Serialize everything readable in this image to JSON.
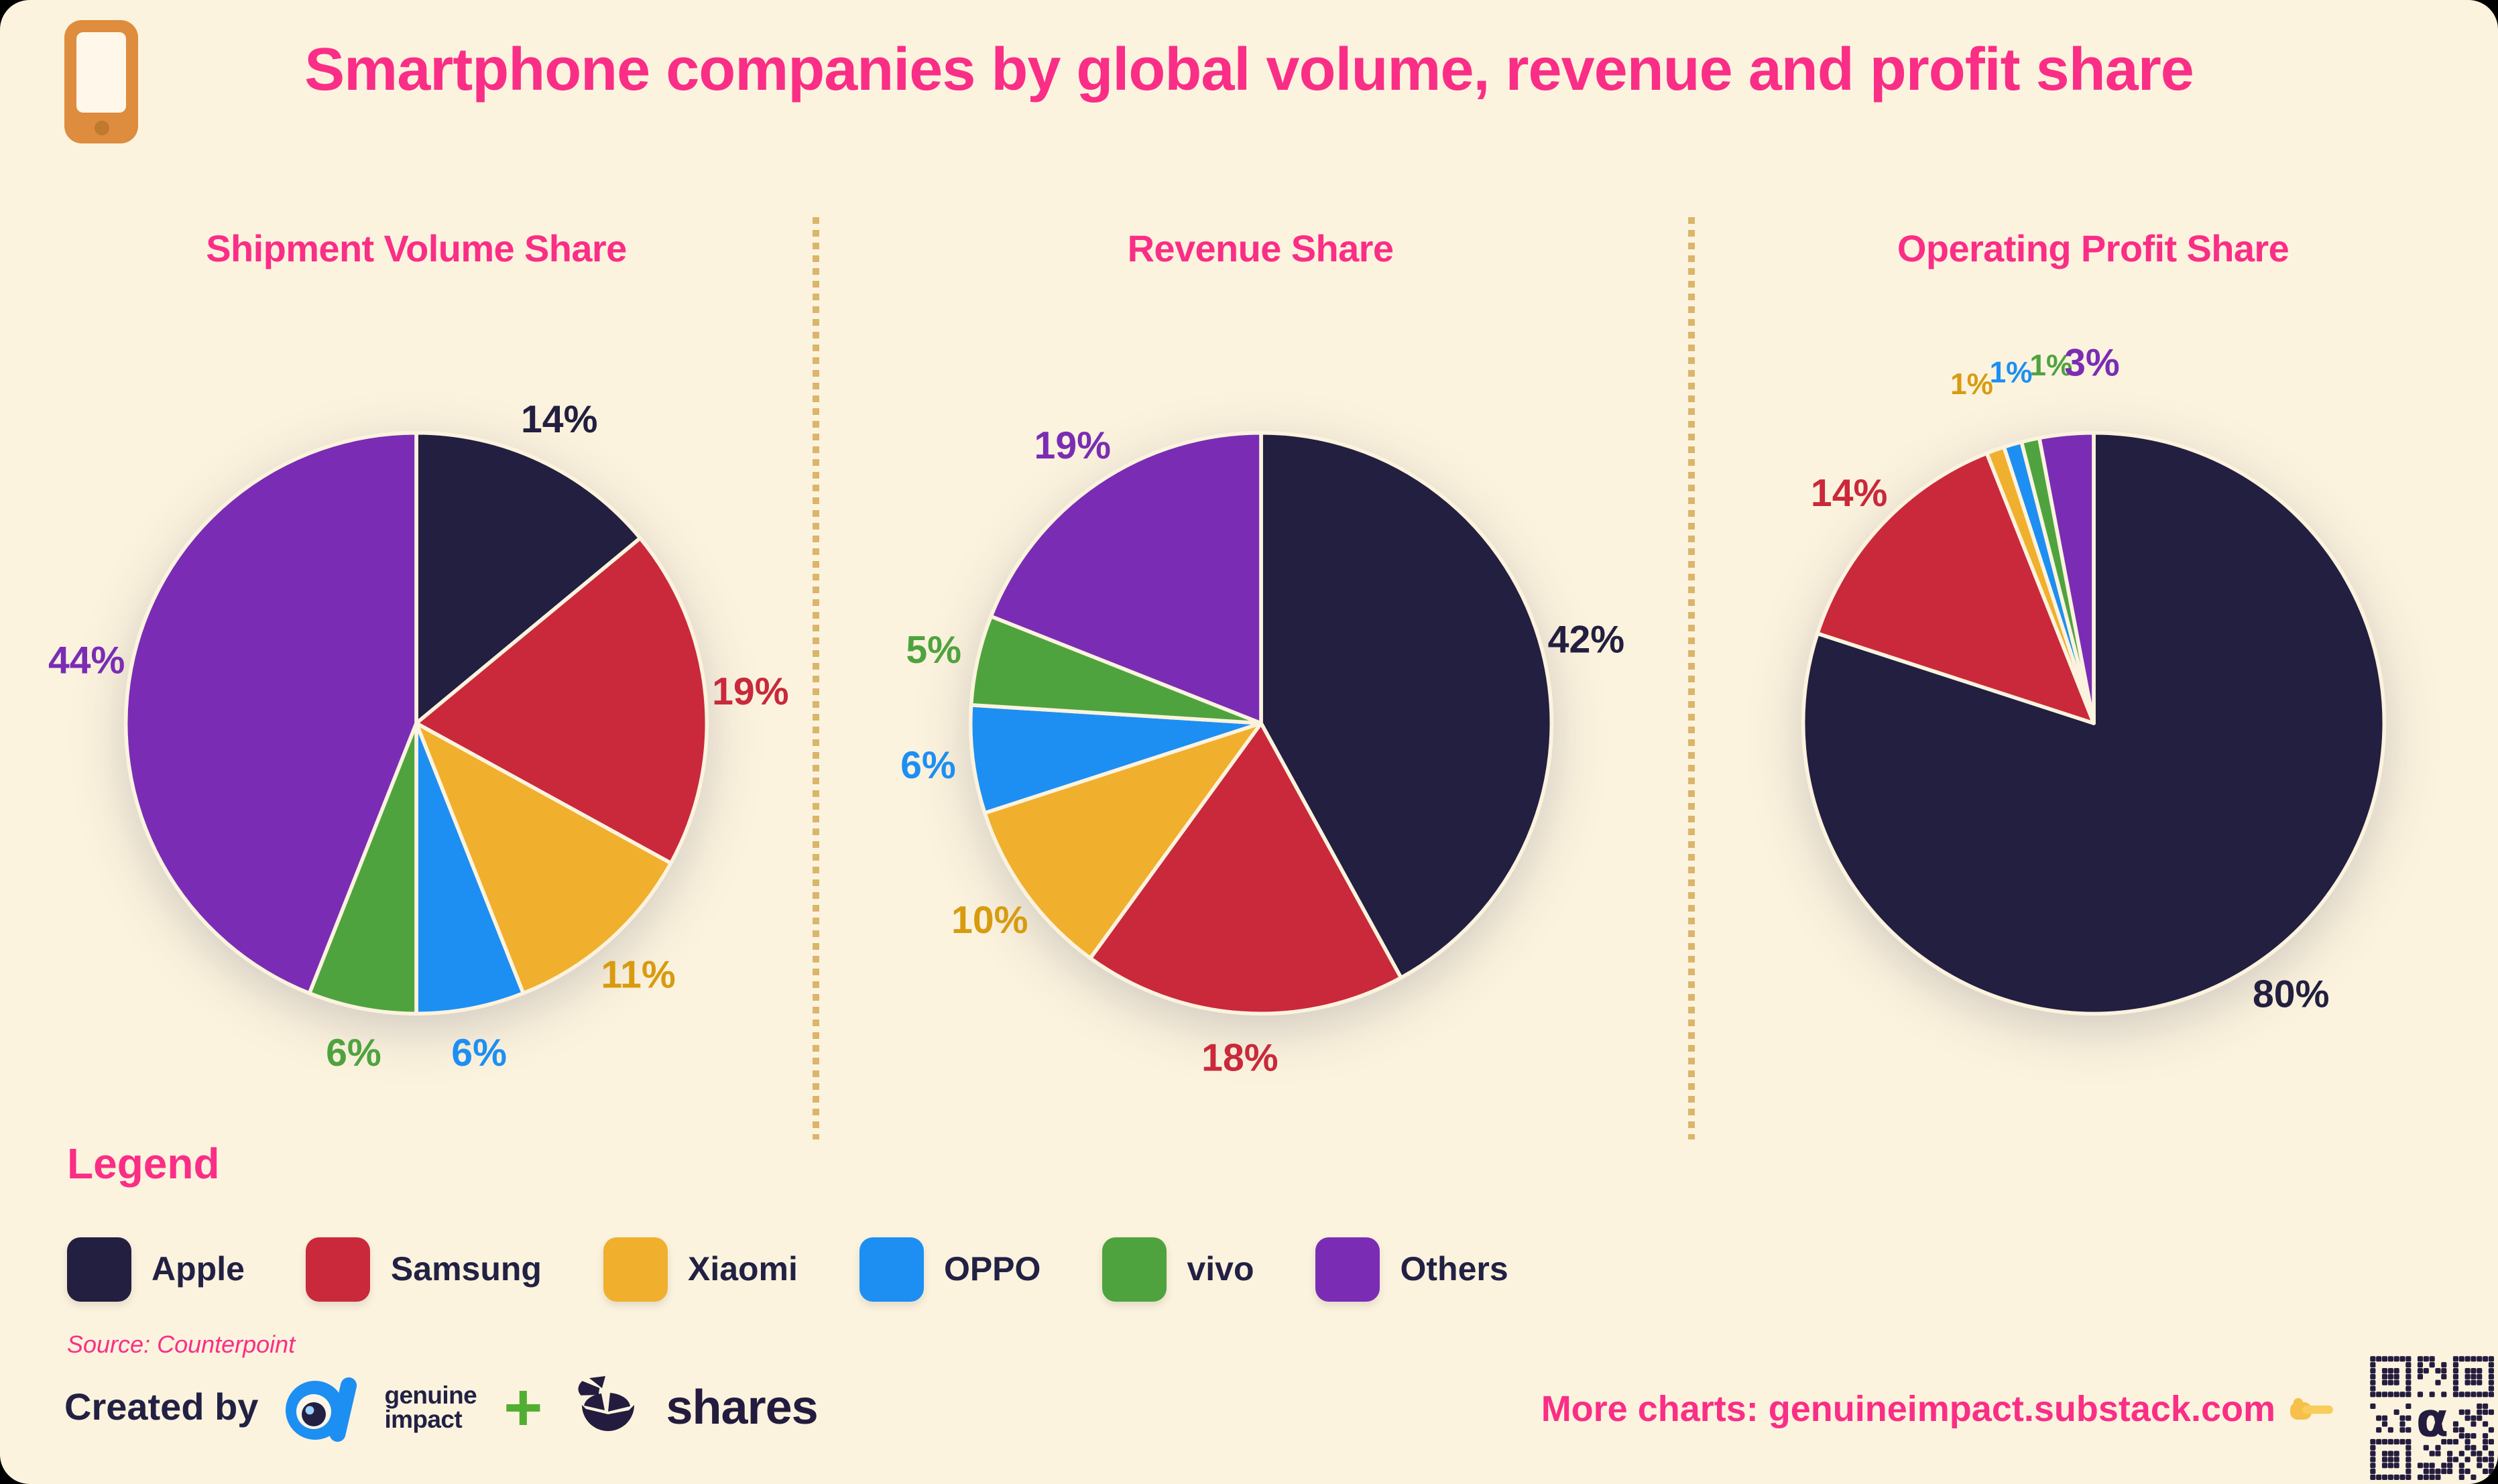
{
  "header": {
    "title": "Smartphone companies by global volume, revenue and profit share",
    "icon": "smartphone-icon"
  },
  "chart_data": [
    {
      "type": "pie",
      "title": "Shipment Volume Share",
      "unit": "%",
      "direction": "clockwise",
      "start_angle_deg": 0,
      "categories": [
        "Apple",
        "Samsung",
        "Xiaomi",
        "OPPO",
        "vivo",
        "Others"
      ],
      "values": [
        14,
        19,
        11,
        6,
        6,
        44
      ],
      "data_labels": [
        "14%",
        "19%",
        "11%",
        "6%",
        "6%",
        "44%"
      ],
      "legend_position": "shared-bottom"
    },
    {
      "type": "pie",
      "title": "Revenue Share",
      "unit": "%",
      "direction": "clockwise",
      "start_angle_deg": 0,
      "categories": [
        "Apple",
        "Samsung",
        "Xiaomi",
        "OPPO",
        "vivo",
        "Others"
      ],
      "values": [
        42,
        18,
        10,
        6,
        5,
        19
      ],
      "data_labels": [
        "42%",
        "18%",
        "10%",
        "6%",
        "5%",
        "19%"
      ],
      "legend_position": "shared-bottom"
    },
    {
      "type": "pie",
      "title": "Operating Profit Share",
      "unit": "%",
      "direction": "clockwise",
      "start_angle_deg": 0,
      "categories": [
        "Apple",
        "Samsung",
        "Xiaomi",
        "OPPO",
        "vivo",
        "Others"
      ],
      "values": [
        80,
        14,
        1,
        1,
        1,
        3
      ],
      "data_labels": [
        "80%",
        "14%",
        "1%",
        "1%",
        "1%",
        "3%"
      ],
      "legend_position": "shared-bottom"
    }
  ],
  "legend": {
    "title": "Legend",
    "items": [
      {
        "label": "Apple",
        "color": "#221F40"
      },
      {
        "label": "Samsung",
        "color": "#C9293B"
      },
      {
        "label": "Xiaomi",
        "color": "#F0AF2D"
      },
      {
        "label": "OPPO",
        "color": "#1D8FF2"
      },
      {
        "label": "vivo",
        "color": "#4FA33F"
      },
      {
        "label": "Others",
        "color": "#7A2DB4"
      }
    ]
  },
  "source": "Source: Counterpoint",
  "footer": {
    "created_by": "Created by",
    "brand1": {
      "name": "genuine impact",
      "line1": "genuine",
      "line2": "impact",
      "icon": "genuine-impact-alpha-logo"
    },
    "plus": "+",
    "brand2": {
      "name": "shares",
      "label": "shares",
      "icon": "shares-pie-logo"
    },
    "more_charts": "More charts: genuineimpact.substack.com",
    "pointer_icon": "pointing-finger-icon",
    "qr_icon": "qr-code"
  },
  "colors": {
    "outer_background": "#000000",
    "card_background": "#FCF3DE",
    "accent_pink": "#FA2E86",
    "navy_text": "#222144",
    "apple": "#221F40",
    "samsung": "#C9293B",
    "xiaomi": "#F0AF2D",
    "xiaomi_label": "#D89B10",
    "oppo": "#1D8FF2",
    "vivo": "#4FA33F",
    "others": "#7A2DB4",
    "divider_tan": "#DBB56B",
    "phone_orange": "#DE8C3E",
    "logo_blue": "#1D8FF2",
    "logo_green": "#52AE32",
    "shares_navy": "#231C3E"
  }
}
